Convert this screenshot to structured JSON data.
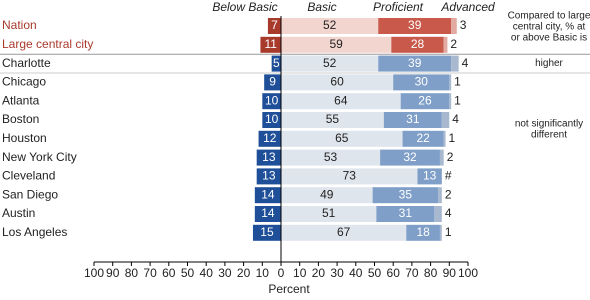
{
  "chart_data": {
    "type": "diverging-stacked-bar",
    "categories": [
      "Nation",
      "Large central city",
      "Charlotte",
      "Chicago",
      "Atlanta",
      "Boston",
      "Houston",
      "New York City",
      "Cleveland",
      "San Diego",
      "Austin",
      "Los Angeles"
    ],
    "category_colors": [
      "#a83a2c",
      "#a83a2c",
      "#222222",
      "#222222",
      "#222222",
      "#222222",
      "#222222",
      "#222222",
      "#222222",
      "#222222",
      "#222222",
      "#222222"
    ],
    "series": [
      {
        "name": "Below Basic",
        "side": "left",
        "values": [
          7,
          11,
          5,
          9,
          10,
          10,
          12,
          13,
          13,
          14,
          14,
          15
        ],
        "colors": [
          "#a83a2c",
          "#a83a2c",
          "#1f4f98",
          "#1f4f98",
          "#1f4f98",
          "#1f4f98",
          "#1f4f98",
          "#1f4f98",
          "#1f4f98",
          "#1f4f98",
          "#1f4f98",
          "#1f4f98"
        ]
      },
      {
        "name": "Basic",
        "side": "right",
        "values": [
          52,
          59,
          52,
          60,
          64,
          55,
          65,
          53,
          73,
          49,
          51,
          67
        ],
        "colors": [
          "#f3d5d0",
          "#f3d5d0",
          "#dfe5ec",
          "#dfe5ec",
          "#dfe5ec",
          "#dfe5ec",
          "#dfe5ec",
          "#dfe5ec",
          "#dfe5ec",
          "#dfe5ec",
          "#dfe5ec",
          "#dfe5ec"
        ]
      },
      {
        "name": "Proficient",
        "side": "right",
        "values": [
          39,
          28,
          39,
          30,
          26,
          31,
          22,
          32,
          13,
          35,
          31,
          18
        ],
        "colors": [
          "#c95a4b",
          "#c95a4b",
          "#7f9fc9",
          "#7f9fc9",
          "#7f9fc9",
          "#7f9fc9",
          "#7f9fc9",
          "#7f9fc9",
          "#7f9fc9",
          "#7f9fc9",
          "#7f9fc9",
          "#7f9fc9"
        ]
      },
      {
        "name": "Advanced",
        "side": "right",
        "values": [
          3,
          2,
          4,
          1,
          1,
          4,
          1,
          2,
          0,
          2,
          4,
          1
        ],
        "value_labels": [
          "3",
          "2",
          "4",
          "1",
          "1",
          "4",
          "1",
          "2",
          "#",
          "2",
          "4",
          "1"
        ],
        "colors": [
          "#e3aaa1",
          "#e3aaa1",
          "#a8b8cf",
          "#a8b8cf",
          "#a8b8cf",
          "#a8b8cf",
          "#a8b8cf",
          "#a8b8cf",
          "#a8b8cf",
          "#a8b8cf",
          "#a8b8cf",
          "#a8b8cf"
        ]
      }
    ],
    "xlabel": "Percent",
    "xlim": [
      -100,
      100
    ],
    "xticks": [
      {
        "value": -100,
        "label": "100"
      },
      {
        "value": -90,
        "label": "90"
      },
      {
        "value": -80,
        "label": "80"
      },
      {
        "value": -70,
        "label": "70"
      },
      {
        "value": -60,
        "label": "60"
      },
      {
        "value": -50,
        "label": "50"
      },
      {
        "value": -40,
        "label": "40"
      },
      {
        "value": -30,
        "label": "30"
      },
      {
        "value": -20,
        "label": "20"
      },
      {
        "value": -10,
        "label": "10"
      },
      0,
      10,
      20,
      30,
      40,
      50,
      60,
      70,
      80,
      90,
      100
    ],
    "note": [
      "Compared to large",
      "central city, % at",
      "or above Basic is"
    ],
    "comparisons": [
      {
        "row": 2,
        "text": [
          "higher"
        ]
      },
      {
        "row": 5.5,
        "text": [
          "not significantly",
          "different"
        ]
      }
    ]
  }
}
